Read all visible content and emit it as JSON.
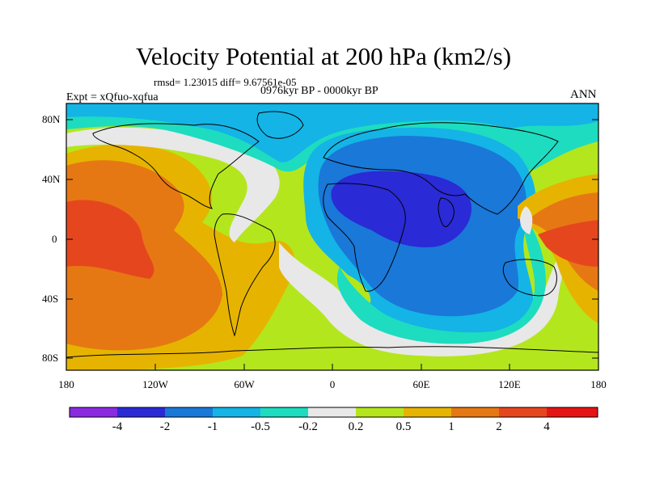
{
  "header": {
    "title": "Velocity Potential at 200 hPa (km2/s)",
    "stats": "rmsd= 1.23015 diff= 9.67561e-05",
    "period": "0976kyr BP - 0000kyr BP",
    "experiment": "Expt = xQfuo-xqfua",
    "season": "ANN"
  },
  "map": {
    "lat_ticks": [
      "80N",
      "40N",
      "0",
      "40S",
      "80S"
    ],
    "lon_ticks": [
      "180",
      "120W",
      "60W",
      "0",
      "60E",
      "120E",
      "180"
    ]
  },
  "colorbar": {
    "labels": [
      "-4",
      "-2",
      "-1",
      "-0.5",
      "-0.2",
      "0.2",
      "0.5",
      "1",
      "2",
      "4"
    ],
    "colors": [
      "#8a2be2",
      "#2a2ad6",
      "#1a78d8",
      "#14b4e6",
      "#1edcc0",
      "#e8e8e8",
      "#b4e61e",
      "#e6b400",
      "#e67814",
      "#e6461e",
      "#e61414"
    ]
  },
  "chart_data": {
    "type": "heatmap",
    "title": "Velocity Potential at 200 hPa (km2/s)",
    "contour_levels": [
      -4,
      -2,
      -1,
      -0.5,
      -0.2,
      0.2,
      0.5,
      1,
      2,
      4
    ],
    "xlim": [
      -180,
      180
    ],
    "ylim": [
      -90,
      90
    ],
    "xlabel": "",
    "ylabel": ""
  }
}
